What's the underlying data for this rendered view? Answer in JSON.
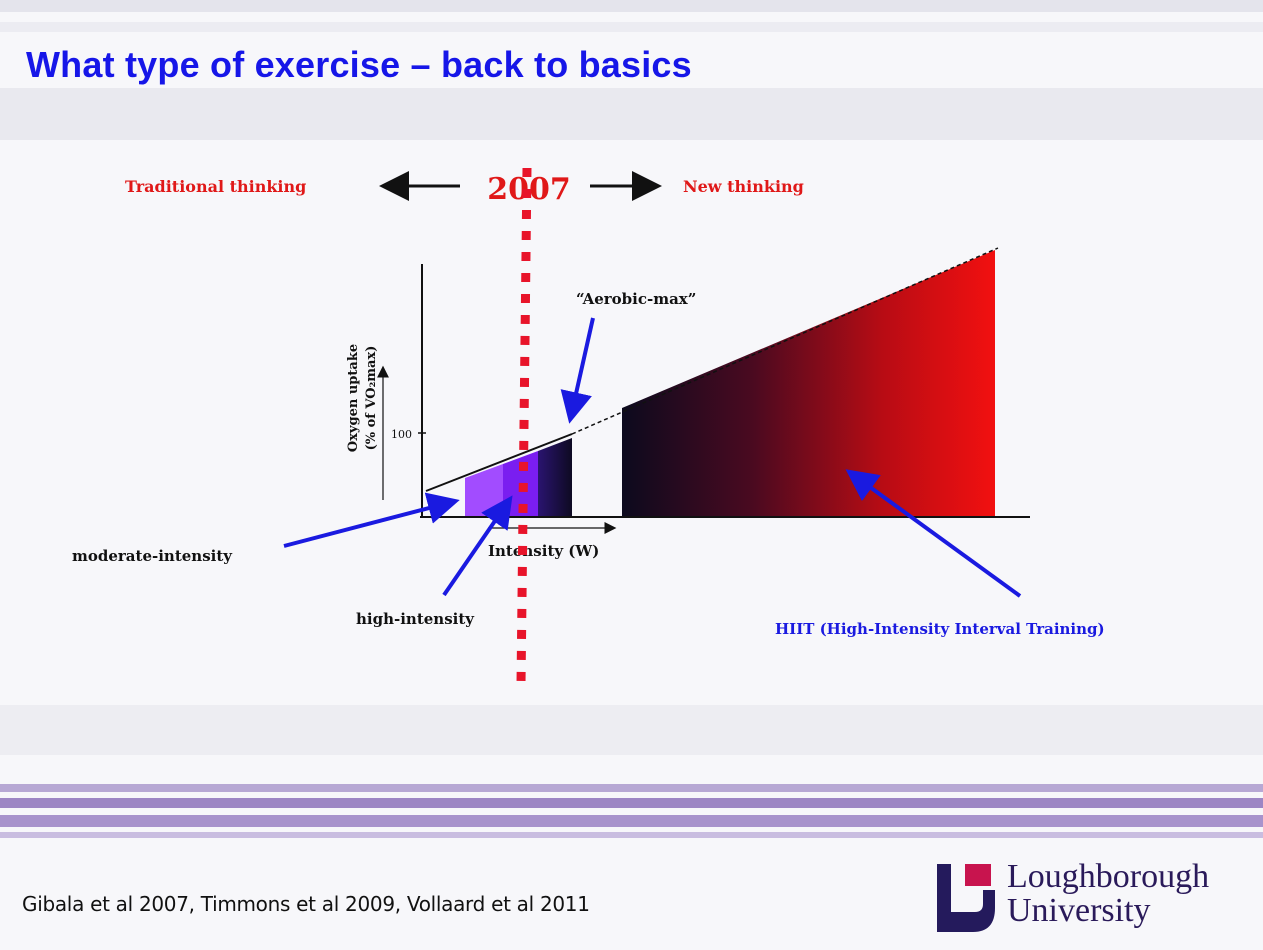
{
  "slide": {
    "title": "What type of exercise – back to basics"
  },
  "timeline": {
    "left_label": "Traditional thinking",
    "year": "2007",
    "right_label": "New thinking"
  },
  "diagram": {
    "y_axis_label_line1": "Oxygen uptake",
    "y_axis_label_line2": "(% of VO₂max)",
    "y_tick_label": "100",
    "x_axis_label": "Intensity (W)",
    "aerobic_max_label": "“Aerobic-max”",
    "moderate_label": "moderate-intensity",
    "high_label": "high-intensity",
    "hiit_label": "HIIT (High-Intensity Interval Training)"
  },
  "colors": {
    "title": "#1616e8",
    "timeline_text": "#e01818",
    "arrow_blue": "#1a1ae0",
    "moderate_fill": "#a24cff",
    "high_fill": "#7a1ef0",
    "hiit_dark": "#0c0a1e",
    "hiit_red": "#f01010"
  },
  "footer": {
    "references": "Gibala et al 2007, Timmons et al 2009, Vollaard et al 2011",
    "logo_line1": "Loughborough",
    "logo_line2": "University"
  }
}
